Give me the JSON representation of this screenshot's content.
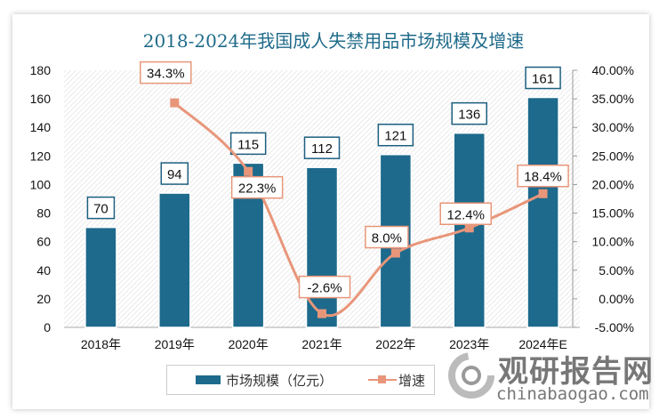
{
  "chart_data": {
    "type": "bar+line",
    "title": "2018-2024年我国成人失禁用品市场规模及增速",
    "categories": [
      "2018年",
      "2019年",
      "2020年",
      "2021年",
      "2022年",
      "2023年",
      "2024年E"
    ],
    "series": [
      {
        "name": "市场规模（亿元）",
        "type": "bar",
        "axis": "left",
        "values": [
          70,
          94,
          115,
          112,
          121,
          136,
          161
        ],
        "labels": [
          "70",
          "94",
          "115",
          "112",
          "121",
          "136",
          "161"
        ]
      },
      {
        "name": "增速",
        "type": "line",
        "axis": "right",
        "values": [
          null,
          34.3,
          22.3,
          -2.6,
          8.0,
          12.4,
          18.4
        ],
        "labels": [
          "",
          "34.3%",
          "22.3%",
          "-2.6%",
          "8.0%",
          "12.4%",
          "18.4%"
        ]
      }
    ],
    "left_axis": {
      "ylim": [
        0,
        180
      ],
      "ticks": [
        "0",
        "20",
        "40",
        "60",
        "80",
        "100",
        "120",
        "140",
        "160",
        "180"
      ]
    },
    "right_axis": {
      "ylim": [
        -5,
        40
      ],
      "ticks": [
        "-5.00%",
        "0.00%",
        "5.00%",
        "10.00%",
        "15.00%",
        "20.00%",
        "25.00%",
        "30.00%",
        "35.00%",
        "40.00%"
      ]
    },
    "legend": "bottom",
    "grid": false,
    "colors": {
      "bar": "#1d6a8c",
      "line": "#e8967a",
      "title": "#1f6b8a"
    }
  },
  "watermark": {
    "name": "观研报告网",
    "url": "chinabaogao.com"
  }
}
